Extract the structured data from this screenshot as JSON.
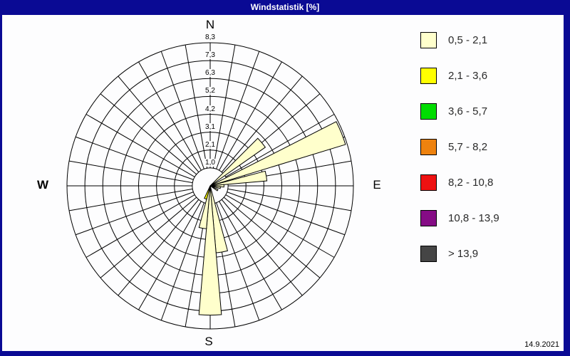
{
  "window": {
    "title": "Windstatistik [%]",
    "date": "14.9.2021"
  },
  "compass": {
    "north": "N",
    "east": "E",
    "south": "S",
    "west": "W"
  },
  "legend": {
    "items": [
      {
        "label": "0,5 - 2,1",
        "color": "#FFFFCC"
      },
      {
        "label": "2,1 - 3,6",
        "color": "#FFFF00"
      },
      {
        "label": "3,6 - 5,7",
        "color": "#00DD00"
      },
      {
        "label": "5,7 - 8,2",
        "color": "#EE820E"
      },
      {
        "label": "8,2 - 10,8",
        "color": "#EE1111"
      },
      {
        "label": "10,8 - 13,9",
        "color": "#850C85"
      },
      {
        "label": "> 13,9",
        "color": "#454545"
      }
    ]
  },
  "chart_data": {
    "type": "windrose-polar-bar",
    "title": "Windstatistik [%]",
    "units": "percent frequency",
    "axis_max": 8.3,
    "ring_values": [
      1.0,
      2.1,
      3.1,
      4.2,
      5.2,
      6.3,
      7.3,
      8.3
    ],
    "ring_labels": [
      "1,0",
      "2,1",
      "3,1",
      "4,2",
      "5,2",
      "6,3",
      "7,3",
      "8,3"
    ],
    "sectors": 36,
    "sector_width_deg": 10,
    "speed_classes": [
      "0,5 - 2,1",
      "2,1 - 3,6",
      "3,6 - 5,7",
      "5,7 - 8,2",
      "8,2 - 10,8",
      "10,8 - 13,9",
      "> 13,9"
    ],
    "petals": [
      {
        "direction_deg": 50,
        "value": 3.9,
        "speed_class": "0,5 - 2,1",
        "color": "#FFFFCC"
      },
      {
        "direction_deg": 68,
        "value": 8.2,
        "speed_class": "0,5 - 2,1",
        "color": "#FFFFCC"
      },
      {
        "direction_deg": 80,
        "value": 3.3,
        "speed_class": "0,5 - 2,1",
        "color": "#FFFFCC"
      },
      {
        "direction_deg": 90,
        "value": 0.8,
        "speed_class": "0,5 - 2,1",
        "color": "#FFFFCC"
      },
      {
        "direction_deg": 100,
        "value": 0.6,
        "speed_class": "0,5 - 2,1",
        "color": "#FFFFCC"
      },
      {
        "direction_deg": 120,
        "value": 0.5,
        "speed_class": "0,5 - 2,1",
        "color": "#FFFFCC"
      },
      {
        "direction_deg": 170,
        "value": 3.9,
        "speed_class": "0,5 - 2,1",
        "color": "#FFFFCC"
      },
      {
        "direction_deg": 180,
        "value": 7.5,
        "speed_class": "0,5 - 2,1",
        "color": "#FFFFCC"
      },
      {
        "direction_deg": 190,
        "value": 2.5,
        "speed_class": "0,5 - 2,1",
        "color": "#FFFFCC"
      },
      {
        "direction_deg": 200,
        "value": 0.8,
        "speed_class": "2,1 - 3,6",
        "color": "#FFFF00"
      }
    ]
  },
  "colors": {
    "frame": "#0A0A94",
    "title_text": "#FFFFFF",
    "grid": "#000000",
    "background": "#FDFDFE"
  }
}
